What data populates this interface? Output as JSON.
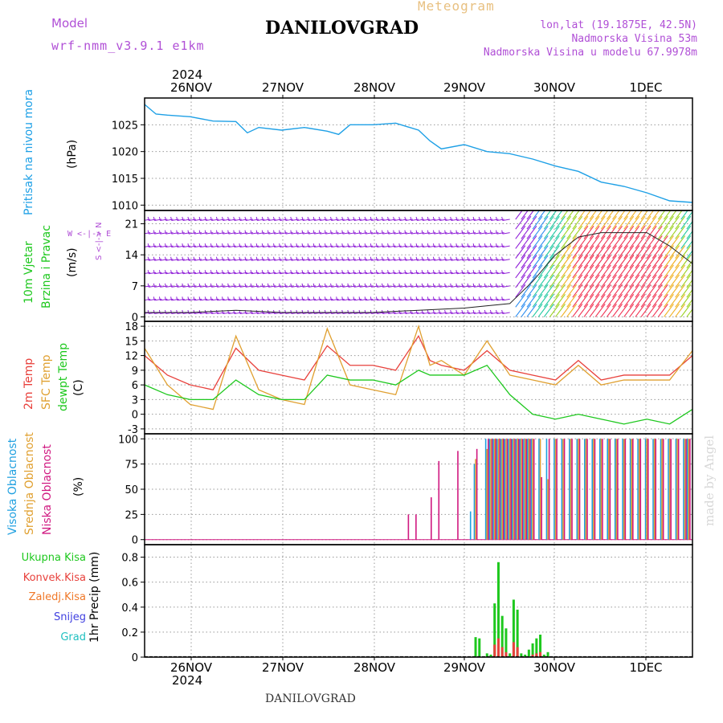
{
  "header": {
    "model_label": "Model",
    "model_name": "wrf-nmm_v3.9.1 e1km",
    "product": "Meteogram",
    "station": "DANILOVGRAD",
    "location": "lon,lat (19.1875E, 42.5N)",
    "altitude": "Nadmorska Visina 53m",
    "model_altitude": "Nadmorska Visina u modelu 67.9978m"
  },
  "footer": {
    "station": "DANILOVGRAD",
    "credit": "made by Angel"
  },
  "time_axis": {
    "year": "2024",
    "ticks": [
      "26NOV",
      "27NOV",
      "28NOV",
      "29NOV",
      "30NOV",
      "1DEC"
    ],
    "start": "2024-11-25T12:00",
    "end": "2024-12-01T12:00"
  },
  "colors": {
    "pressure": "#1ea0e6",
    "temp2m": "#e8413c",
    "sfc_temp": "#e0a030",
    "dewpoint": "#1ec81e",
    "wind_low": "#9020d8",
    "cloud_high": "#20a0e0",
    "cloud_mid": "#e0a030",
    "cloud_low": "#d01880",
    "precip_total": "#1ec81e",
    "precip_conv": "#e8413c",
    "precip_frozen": "#f07828",
    "snow": "#4040e0",
    "graupel": "#20c0c0"
  },
  "panels": {
    "pressure": {
      "label": "Pritisak na nivou mora",
      "unit": "(hPa)",
      "ticks": [
        "1010",
        "1015",
        "1020",
        "1025"
      ]
    },
    "wind": {
      "label": "10m Vjetar",
      "label2": "Brzina i Pravac",
      "unit": "(m/s)",
      "compass": "W <-|-> E",
      "compass2": "S <-|-> N",
      "ticks": [
        "0",
        "7",
        "14",
        "21"
      ]
    },
    "temp": {
      "label_2m": "2m Temp",
      "label_sfc": "SFC Temp",
      "label_dew": "dewpt Temp",
      "unit": "(C)",
      "ticks": [
        "-3",
        "0",
        "3",
        "6",
        "9",
        "12",
        "15",
        "18"
      ]
    },
    "cloud": {
      "label_high": "Visoka Oblacnost",
      "label_mid": "Srednja Oblacnost",
      "label_low": "Niska Oblacnost",
      "unit": "(%)",
      "ticks": [
        "0",
        "25",
        "50",
        "75",
        "100"
      ]
    },
    "precip": {
      "legend": [
        "Ukupna Kisa",
        "Konvek.Kisa",
        "Zaledj.Kisa",
        "Snijeg",
        "Grad"
      ],
      "unit": "1hr Precip (mm)",
      "ticks": [
        "0",
        "0.2",
        "0.4",
        "0.6",
        "0.8"
      ]
    }
  },
  "chart_data": [
    {
      "type": "line",
      "title": "Pritisak na nivou mora",
      "ylabel": "(hPa)",
      "ylim": [
        1009,
        1030
      ],
      "x_hours_since_start": [
        0,
        3,
        6,
        12,
        18,
        24,
        27,
        30,
        36,
        42,
        48,
        51,
        54,
        60,
        66,
        72,
        75,
        78,
        84,
        90,
        96,
        102,
        108,
        114,
        120,
        126,
        132,
        138,
        144
      ],
      "series": [
        {
          "name": "Pritisak na nivou mora",
          "values": [
            1028.8,
            1027.0,
            1026.8,
            1026.5,
            1025.7,
            1025.6,
            1023.5,
            1024.5,
            1024.0,
            1024.5,
            1023.8,
            1023.2,
            1025.0,
            1025.0,
            1025.3,
            1024.0,
            1022.0,
            1020.5,
            1021.3,
            1020.0,
            1019.6,
            1018.6,
            1017.3,
            1016.3,
            1014.3,
            1013.5,
            1012.3,
            1010.8,
            1010.5
          ]
        }
      ]
    },
    {
      "type": "line",
      "title": "10m Vjetar Brzina i Pravac",
      "ylabel": "(m/s)",
      "ylim": [
        -1,
        24
      ],
      "x_hours_since_start": [
        0,
        12,
        24,
        36,
        48,
        60,
        72,
        84,
        96,
        102,
        108,
        114,
        120,
        126,
        132,
        138,
        144
      ],
      "series": [
        {
          "name": "10m wind speed",
          "values": [
            1,
            1,
            1.5,
            1,
            1,
            1,
            1.5,
            2,
            3,
            8,
            14,
            18,
            19,
            19,
            19,
            16,
            12
          ]
        }
      ]
    },
    {
      "type": "line",
      "title": "Temperature",
      "ylabel": "(C)",
      "ylim": [
        -4,
        19
      ],
      "x_hours_since_start": [
        0,
        6,
        12,
        18,
        24,
        30,
        36,
        42,
        48,
        54,
        60,
        66,
        72,
        75,
        78,
        84,
        90,
        96,
        102,
        108,
        114,
        120,
        126,
        132,
        138,
        144
      ],
      "series": [
        {
          "name": "2m Temp",
          "values": [
            12,
            8,
            6,
            5,
            13.5,
            9,
            8,
            7,
            14,
            10,
            10,
            9,
            16,
            11,
            10,
            9,
            13,
            9,
            8,
            7,
            11,
            7,
            8,
            8,
            8,
            12
          ]
        },
        {
          "name": "SFC Temp",
          "values": [
            13.5,
            6,
            2,
            1,
            16,
            5,
            3,
            2,
            17.5,
            6,
            5,
            4,
            18,
            10,
            11,
            8,
            15,
            8,
            7,
            6,
            10,
            6,
            7,
            7,
            7,
            13
          ]
        },
        {
          "name": "dewpt Temp",
          "values": [
            6,
            4,
            3,
            3,
            7,
            4,
            3,
            3,
            8,
            7,
            7,
            6,
            9,
            8,
            8,
            8,
            10,
            4,
            0,
            -1,
            0,
            -1,
            -2,
            -1,
            -2,
            1
          ]
        }
      ]
    },
    {
      "type": "bar",
      "title": "Oblacnost",
      "ylabel": "(%)",
      "ylim": [
        -5,
        105
      ],
      "x_hours_since_start": [
        69,
        71,
        75,
        77,
        82,
        86,
        87,
        90,
        91,
        92,
        93,
        94,
        95,
        96,
        97,
        98,
        99,
        100,
        101,
        102,
        104,
        106,
        108,
        110,
        112,
        114,
        116,
        118,
        120,
        122,
        124,
        126,
        128,
        130,
        132,
        134,
        136,
        138,
        140,
        142,
        143
      ],
      "series": [
        {
          "name": "Visoka Oblacnost",
          "values": [
            0,
            0,
            0,
            0,
            0,
            28,
            75,
            100,
            100,
            100,
            100,
            100,
            100,
            100,
            100,
            100,
            100,
            100,
            100,
            100,
            100,
            100,
            100,
            100,
            100,
            100,
            100,
            100,
            100,
            100,
            100,
            100,
            100,
            100,
            100,
            100,
            100,
            100,
            100,
            100,
            100
          ]
        },
        {
          "name": "Srednja Oblacnost",
          "values": [
            0,
            0,
            0,
            0,
            0,
            0,
            80,
            90,
            100,
            100,
            100,
            100,
            100,
            100,
            100,
            100,
            100,
            100,
            100,
            100,
            100,
            60,
            100,
            100,
            100,
            100,
            100,
            100,
            100,
            100,
            100,
            100,
            100,
            100,
            100,
            100,
            100,
            100,
            100,
            100,
            100
          ]
        },
        {
          "name": "Niska Oblacnost",
          "values": [
            25,
            25,
            42,
            78,
            88,
            0,
            90,
            100,
            100,
            100,
            100,
            100,
            100,
            100,
            100,
            100,
            100,
            100,
            100,
            100,
            62,
            100,
            100,
            100,
            100,
            100,
            100,
            100,
            100,
            100,
            100,
            100,
            100,
            100,
            100,
            100,
            100,
            100,
            100,
            100,
            100
          ]
        }
      ]
    },
    {
      "type": "bar",
      "title": "1hr Precip",
      "ylabel": "(mm)",
      "ylim": [
        0,
        0.9
      ],
      "x_hours_since_start": [
        87,
        88,
        90,
        91,
        92,
        93,
        94,
        95,
        96,
        97,
        98,
        99,
        100,
        101,
        102,
        103,
        104,
        105,
        106
      ],
      "series": [
        {
          "name": "Ukupna Kisa",
          "values": [
            0.16,
            0.15,
            0.03,
            0.02,
            0.43,
            0.76,
            0.33,
            0.23,
            0.03,
            0.46,
            0.38,
            0.03,
            0.02,
            0.06,
            0.11,
            0.15,
            0.18,
            0.02,
            0.04
          ]
        },
        {
          "name": "Konvek.Kisa",
          "values": [
            0,
            0,
            0,
            0,
            0.1,
            0.15,
            0.08,
            0.04,
            0,
            0.12,
            0.08,
            0,
            0,
            0,
            0.02,
            0.03,
            0.04,
            0,
            0
          ]
        }
      ]
    }
  ]
}
